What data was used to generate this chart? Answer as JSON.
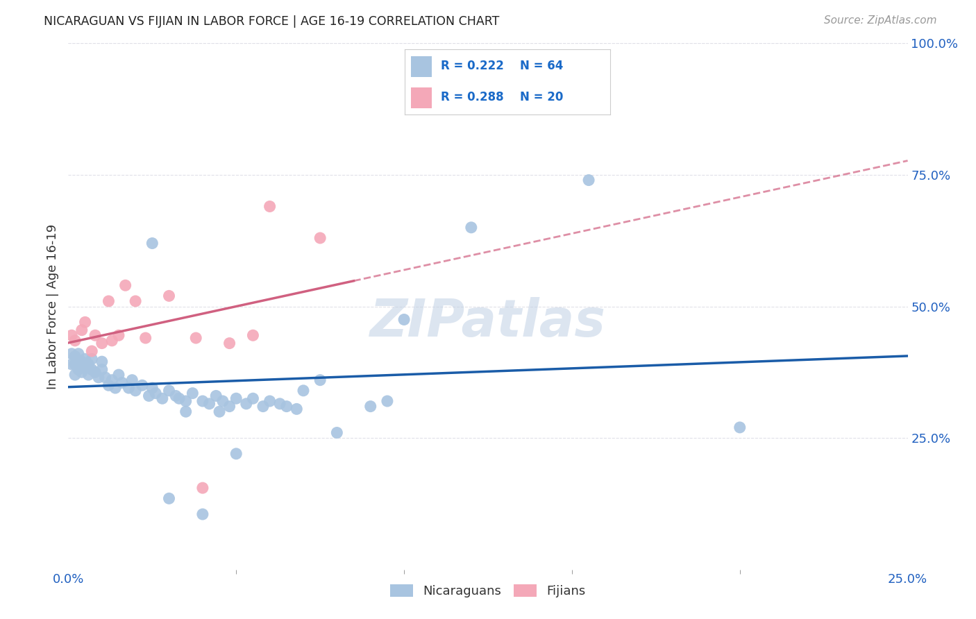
{
  "title": "NICARAGUAN VS FIJIAN IN LABOR FORCE | AGE 16-19 CORRELATION CHART",
  "source": "Source: ZipAtlas.com",
  "ylabel": "In Labor Force | Age 16-19",
  "xlim": [
    0.0,
    0.25
  ],
  "ylim": [
    0.0,
    1.0
  ],
  "yticks": [
    0.25,
    0.5,
    0.75,
    1.0
  ],
  "ytick_labels": [
    "25.0%",
    "50.0%",
    "75.0%",
    "100.0%"
  ],
  "nicaraguan_color": "#a8c4e0",
  "fijian_color": "#f4a8b8",
  "nicaraguan_line_color": "#1a5ca8",
  "fijian_line_color": "#d06080",
  "legend_r_color": "#1a6ac8",
  "R_nicaraguan": 0.222,
  "N_nicaraguan": 64,
  "R_fijian": 0.288,
  "N_fijian": 20,
  "bg_color": "#ffffff",
  "grid_color": "#e0e0e8",
  "watermark": "ZIPatlas"
}
